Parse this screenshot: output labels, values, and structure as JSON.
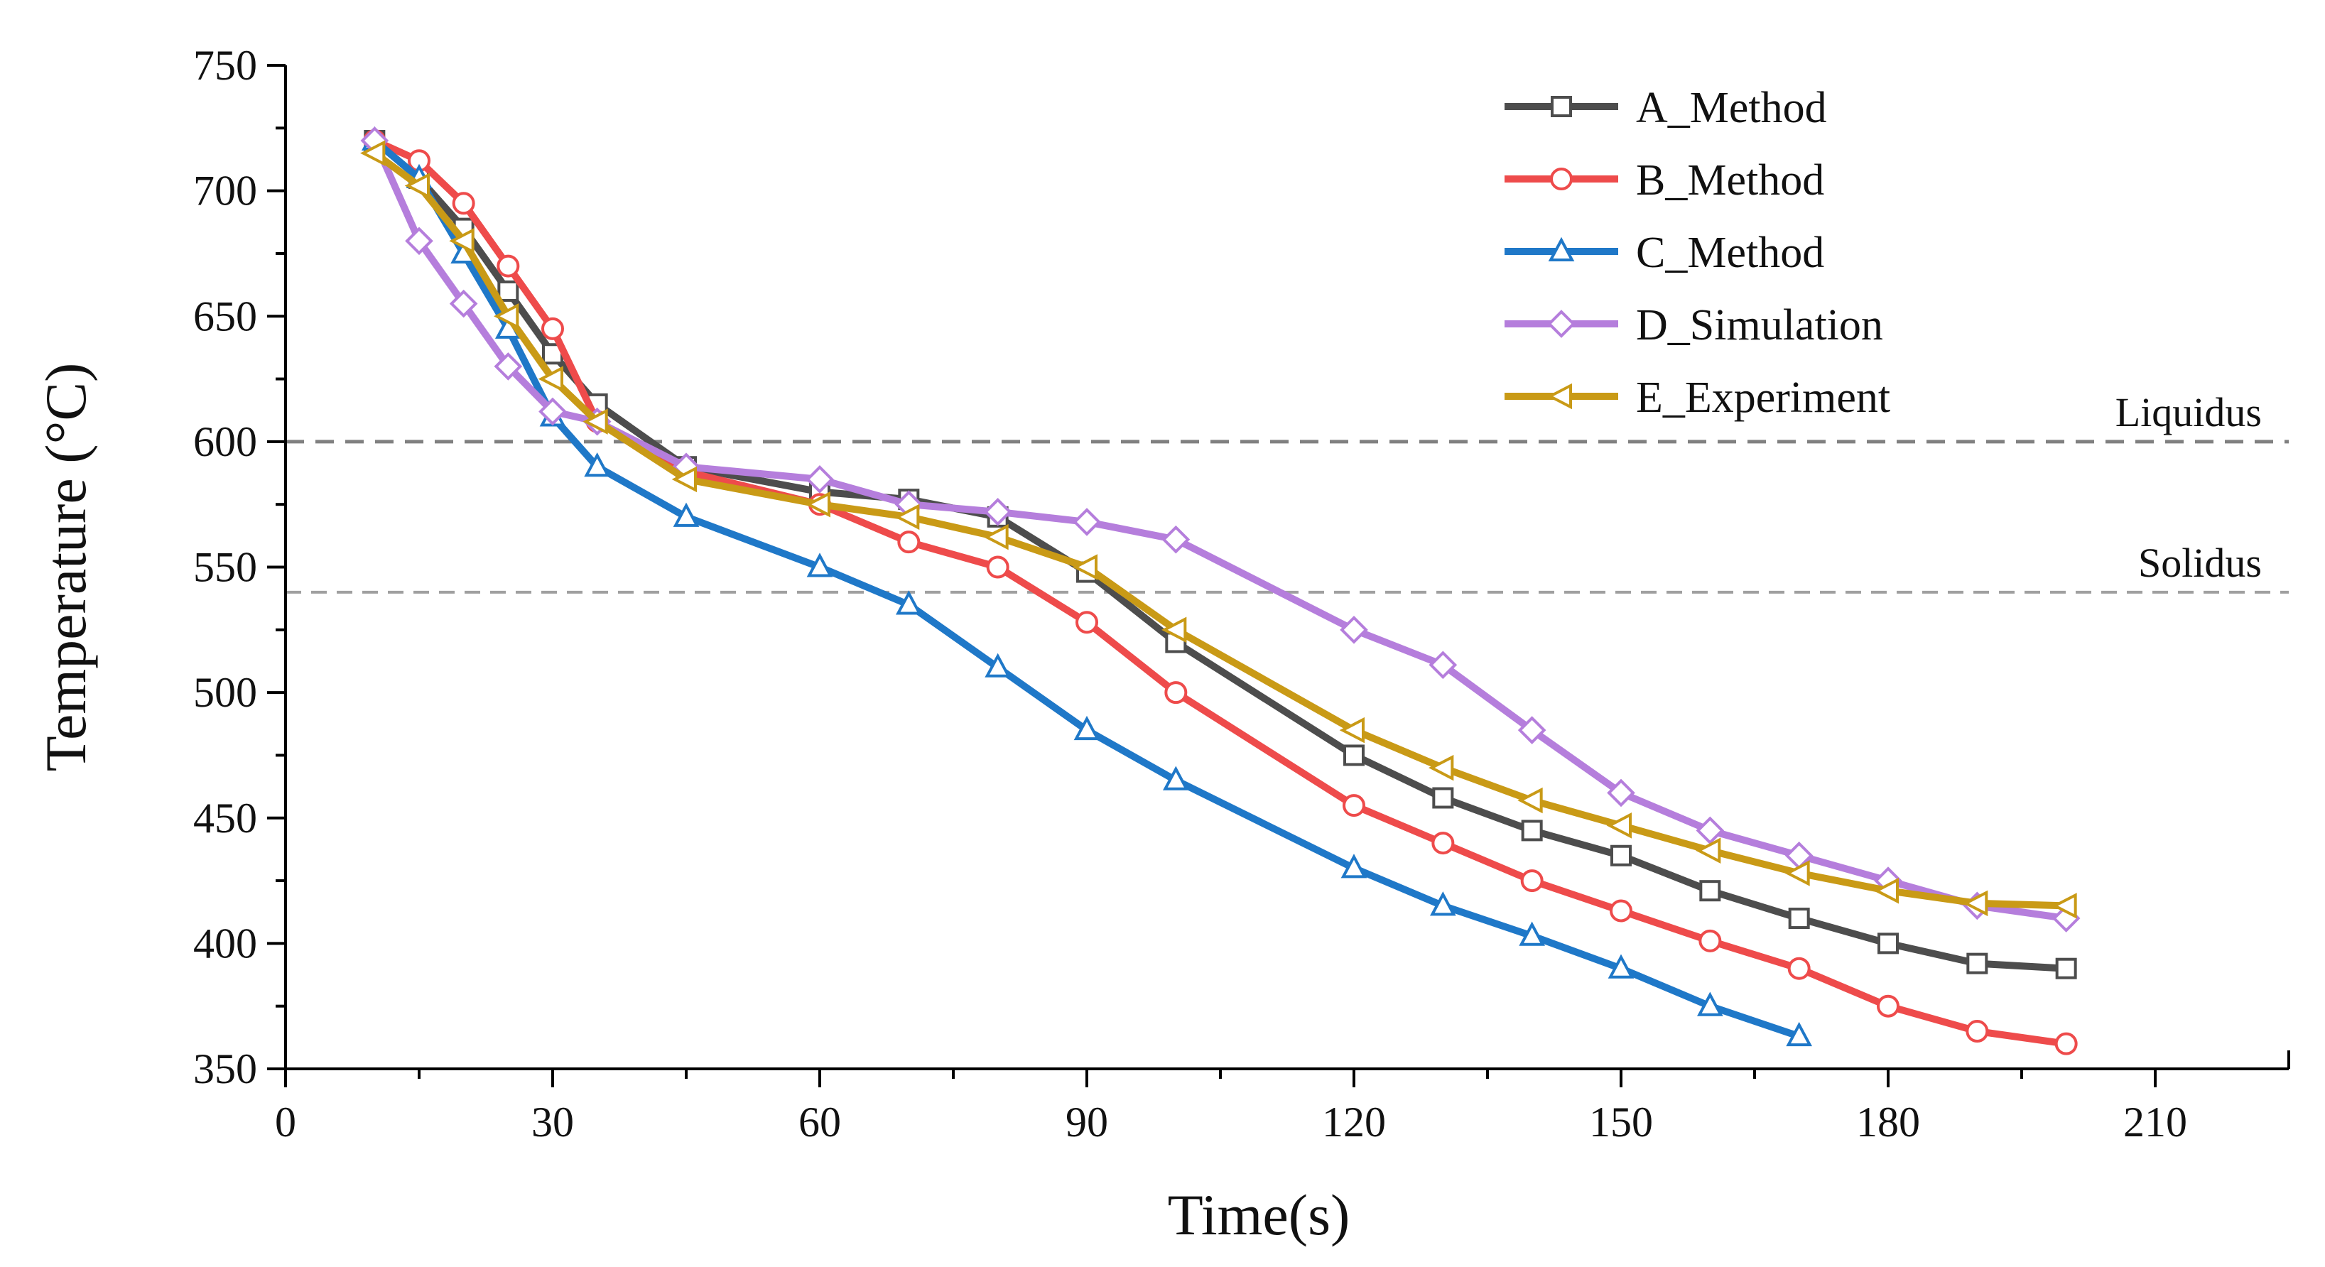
{
  "chart_data": {
    "type": "line",
    "title": "",
    "xlabel": "Time(s)",
    "ylabel": "Temperature (°C)",
    "xlim": [
      0,
      225
    ],
    "ylim": [
      350,
      750
    ],
    "xticks": [
      0,
      30,
      60,
      90,
      120,
      150,
      180,
      210
    ],
    "yticks": [
      350,
      400,
      450,
      500,
      550,
      600,
      650,
      700,
      750
    ],
    "legend_position": "top-right",
    "reference_lines": [
      {
        "label": "Liquidus",
        "y": 600,
        "style": "dashed",
        "color": "#808080"
      },
      {
        "label": "Solidus",
        "y": 540,
        "style": "dashed",
        "color": "#a0a0a0"
      }
    ],
    "series": [
      {
        "name": "A_Method",
        "color": "#4d4d4d",
        "marker": "square",
        "x": [
          10,
          15,
          20,
          25,
          30,
          35,
          45,
          60,
          70,
          80,
          90,
          100,
          120,
          130,
          140,
          150,
          160,
          170,
          180,
          190,
          200
        ],
        "y": [
          720,
          705,
          685,
          660,
          635,
          615,
          590,
          580,
          577,
          570,
          548,
          520,
          475,
          458,
          445,
          435,
          421,
          410,
          400,
          392,
          390
        ]
      },
      {
        "name": "B_Method",
        "color": "#ee4b4b",
        "marker": "circle",
        "x": [
          10,
          15,
          20,
          25,
          30,
          35,
          45,
          60,
          70,
          80,
          90,
          100,
          120,
          130,
          140,
          150,
          160,
          170,
          180,
          190,
          200
        ],
        "y": [
          720,
          712,
          695,
          670,
          645,
          608,
          588,
          575,
          560,
          550,
          528,
          500,
          455,
          440,
          425,
          413,
          401,
          390,
          375,
          365,
          360
        ]
      },
      {
        "name": "C_Method",
        "color": "#1f78c8",
        "marker": "triangle",
        "x": [
          10,
          15,
          20,
          25,
          30,
          35,
          45,
          60,
          70,
          80,
          90,
          100,
          120,
          130,
          140,
          150,
          160,
          170
        ],
        "y": [
          720,
          705,
          675,
          645,
          610,
          590,
          570,
          550,
          535,
          510,
          485,
          465,
          430,
          415,
          403,
          390,
          375,
          363
        ]
      },
      {
        "name": "D_Simulation",
        "color": "#b57edc",
        "marker": "diamond",
        "x": [
          10,
          15,
          20,
          25,
          30,
          35,
          45,
          60,
          70,
          80,
          90,
          100,
          120,
          130,
          140,
          150,
          160,
          170,
          180,
          190,
          200
        ],
        "y": [
          720,
          680,
          655,
          630,
          612,
          608,
          590,
          585,
          575,
          572,
          568,
          561,
          525,
          511,
          485,
          460,
          445,
          435,
          425,
          415,
          410
        ]
      },
      {
        "name": "E_Experiment",
        "color": "#c99a16",
        "marker": "left-triangle",
        "x": [
          10,
          15,
          20,
          25,
          30,
          35,
          45,
          60,
          70,
          80,
          90,
          100,
          120,
          130,
          140,
          150,
          160,
          170,
          180,
          190,
          200
        ],
        "y": [
          715,
          702,
          680,
          650,
          625,
          608,
          585,
          575,
          570,
          562,
          550,
          525,
          485,
          470,
          457,
          447,
          437,
          428,
          421,
          416,
          415
        ]
      }
    ]
  }
}
